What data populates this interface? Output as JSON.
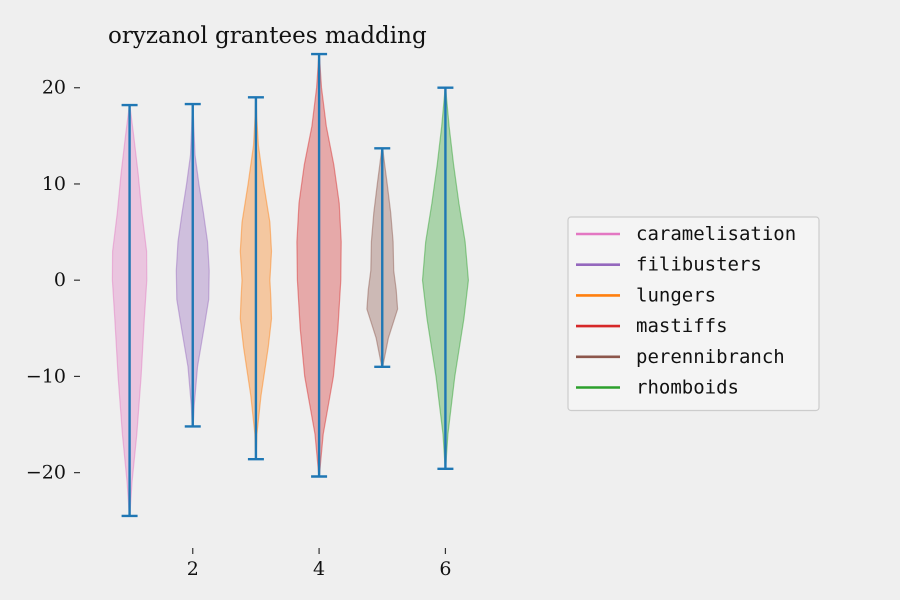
{
  "chart_data": {
    "type": "violin",
    "title": "oryzanol grantees madding",
    "xlabel": "",
    "ylabel": "",
    "xlim": [
      0.5,
      6.5
    ],
    "ylim": [
      -27,
      26
    ],
    "x_ticks": [
      2,
      4,
      6
    ],
    "y_ticks": [
      -20,
      -10,
      0,
      10,
      20
    ],
    "y_tick_labels": [
      "−20",
      "−10",
      "0",
      "10",
      "20"
    ],
    "grid": false,
    "legend_position": "right",
    "stem_color": "#1f77b4",
    "series": [
      {
        "name": "caramelisation",
        "position": 1,
        "color": "#e377c2",
        "min": -24.5,
        "max": 18.2,
        "profile": [
          [
            -24.5,
            0.1
          ],
          [
            -21,
            1.2
          ],
          [
            -16,
            3.5
          ],
          [
            -10,
            5.6
          ],
          [
            -4,
            7.2
          ],
          [
            0,
            8.4
          ],
          [
            3,
            8.3
          ],
          [
            7,
            6.0
          ],
          [
            11,
            4.2
          ],
          [
            15,
            2.0
          ],
          [
            18.2,
            0.1
          ]
        ]
      },
      {
        "name": "filibusters",
        "position": 2,
        "color": "#9467bd",
        "min": -15.2,
        "max": 18.3,
        "profile": [
          [
            -15.2,
            0.2
          ],
          [
            -13,
            0.7
          ],
          [
            -9,
            2.3
          ],
          [
            -5,
            5.5
          ],
          [
            -2,
            7.8
          ],
          [
            1,
            8.0
          ],
          [
            4,
            7.2
          ],
          [
            7,
            5.2
          ],
          [
            10,
            3.0
          ],
          [
            13,
            1.1
          ],
          [
            16,
            0.5
          ],
          [
            18.3,
            0.1
          ]
        ]
      },
      {
        "name": "lungers",
        "position": 3,
        "color": "#ff7f0e",
        "min": -18.6,
        "max": 19.0,
        "profile": [
          [
            -18.6,
            0.1
          ],
          [
            -16,
            0.5
          ],
          [
            -12,
            2.5
          ],
          [
            -7,
            6.0
          ],
          [
            -4,
            7.6
          ],
          [
            -2,
            7.3
          ],
          [
            0,
            6.8
          ],
          [
            3,
            7.6
          ],
          [
            6,
            6.8
          ],
          [
            10,
            3.8
          ],
          [
            14,
            1.2
          ],
          [
            17,
            0.4
          ],
          [
            19.0,
            0.1
          ]
        ]
      },
      {
        "name": "mastiffs",
        "position": 4,
        "color": "#d62728",
        "min": -20.4,
        "max": 23.5,
        "profile": [
          [
            -20.4,
            0.1
          ],
          [
            -16,
            2.0
          ],
          [
            -10,
            7.0
          ],
          [
            -5,
            9.2
          ],
          [
            0,
            10.6
          ],
          [
            4,
            10.8
          ],
          [
            8,
            9.8
          ],
          [
            12,
            7.2
          ],
          [
            16,
            3.5
          ],
          [
            20,
            1.2
          ],
          [
            23.5,
            0.1
          ]
        ]
      },
      {
        "name": "perennibranch",
        "position": 5,
        "color": "#8c564b",
        "min": -9.0,
        "max": 13.7,
        "profile": [
          [
            -9.0,
            0.2
          ],
          [
            -6,
            3.0
          ],
          [
            -3,
            7.5
          ],
          [
            -1,
            6.8
          ],
          [
            1,
            5.6
          ],
          [
            4,
            5.3
          ],
          [
            7,
            4.1
          ],
          [
            10,
            2.4
          ],
          [
            12,
            1.2
          ],
          [
            13.7,
            0.2
          ]
        ]
      },
      {
        "name": "rhomboids",
        "position": 6,
        "color": "#2ca02c",
        "min": -19.6,
        "max": 20.0,
        "profile": [
          [
            -19.6,
            0.1
          ],
          [
            -16,
            1.2
          ],
          [
            -10,
            4.6
          ],
          [
            -4,
            9.0
          ],
          [
            0,
            11.2
          ],
          [
            4,
            9.6
          ],
          [
            8,
            6.6
          ],
          [
            12,
            4.0
          ],
          [
            16,
            1.8
          ],
          [
            20.0,
            0.1
          ]
        ]
      }
    ]
  }
}
